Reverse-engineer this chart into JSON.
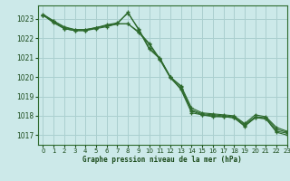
{
  "background_color": "#cce9e9",
  "grid_color": "#aacfcf",
  "line_color": "#2d6a2d",
  "text_color": "#1a4a1a",
  "xlabel": "Graphe pression niveau de la mer (hPa)",
  "xlim": [
    -0.5,
    23
  ],
  "ylim": [
    1016.5,
    1023.7
  ],
  "yticks": [
    1017,
    1018,
    1019,
    1020,
    1021,
    1022,
    1023
  ],
  "xticks": [
    0,
    1,
    2,
    3,
    4,
    5,
    6,
    7,
    8,
    9,
    10,
    11,
    12,
    13,
    14,
    15,
    16,
    17,
    18,
    19,
    20,
    21,
    22,
    23
  ],
  "series": [
    [
      1023.2,
      1022.8,
      1022.5,
      1022.4,
      1022.4,
      1022.55,
      1022.7,
      1022.8,
      1023.3,
      1022.5,
      1021.5,
      1021.0,
      1020.0,
      1019.35,
      1018.15,
      1018.05,
      1017.95,
      1017.95,
      1017.9,
      1017.45,
      1017.9,
      1017.85,
      1017.15,
      1017.0
    ],
    [
      1023.2,
      1022.85,
      1022.5,
      1022.4,
      1022.4,
      1022.5,
      1022.6,
      1022.75,
      1022.75,
      1022.3,
      1021.7,
      1020.9,
      1019.95,
      1019.4,
      1018.25,
      1018.05,
      1018.0,
      1017.95,
      1017.9,
      1017.5,
      1017.9,
      1017.85,
      1017.2,
      1017.1
    ],
    [
      1023.2,
      1022.9,
      1022.55,
      1022.45,
      1022.45,
      1022.55,
      1022.65,
      1022.75,
      1022.75,
      1022.35,
      1021.75,
      1020.95,
      1020.0,
      1019.5,
      1018.3,
      1018.1,
      1018.05,
      1018.0,
      1017.95,
      1017.55,
      1017.95,
      1017.9,
      1017.3,
      1017.15
    ],
    [
      1023.25,
      1022.9,
      1022.6,
      1022.45,
      1022.45,
      1022.55,
      1022.65,
      1022.75,
      1023.35,
      1022.45,
      1021.45,
      1020.95,
      1020.0,
      1019.55,
      1018.4,
      1018.15,
      1018.1,
      1018.05,
      1018.0,
      1017.6,
      1018.05,
      1017.95,
      1017.4,
      1017.2
    ]
  ]
}
